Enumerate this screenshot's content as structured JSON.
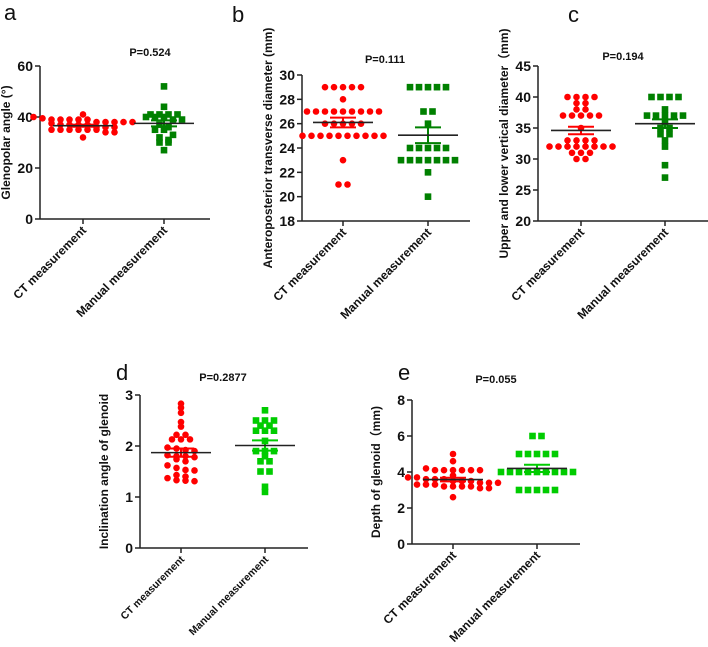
{
  "chart_data": [
    {
      "type": "scatter",
      "panel": "a",
      "title": "P=0.524",
      "ylabel": "Glenopolar angle (°)",
      "ylim": [
        0,
        60
      ],
      "yticks": [
        0,
        20,
        40,
        60
      ],
      "categories": [
        "CT measurement",
        "Manual measurement"
      ],
      "series": [
        {
          "name": "CT measurement",
          "color": "#ff0000",
          "marker": "circle",
          "mean": 36.6,
          "sem": 0.4,
          "values": [
            41,
            40,
            39.5,
            39,
            39,
            39,
            39,
            39,
            38,
            38,
            38,
            38,
            38,
            37.5,
            37,
            37,
            37,
            37,
            36,
            36,
            36,
            35,
            35,
            35,
            35,
            35,
            35,
            34,
            34,
            32
          ]
        },
        {
          "name": "Manual measurement",
          "color": "#008000",
          "marker": "square",
          "mean": 37.5,
          "sem": 1.2,
          "values": [
            52,
            44,
            41,
            41,
            41,
            41,
            40,
            40,
            40,
            39,
            39,
            37,
            36,
            35,
            35,
            33,
            32,
            31,
            30,
            30,
            27
          ]
        }
      ]
    },
    {
      "type": "scatter",
      "panel": "b",
      "title": "P=0.111",
      "ylabel": "Anteroposterior transverse diameter (mm)",
      "ylim": [
        18,
        30
      ],
      "yticks": [
        18,
        20,
        22,
        24,
        26,
        28,
        30
      ],
      "categories": [
        "CT measurement",
        "Manual measurement"
      ],
      "series": [
        {
          "name": "CT measurement",
          "color": "#ff0000",
          "marker": "circle",
          "mean": 26.1,
          "sem": 0.4,
          "values": [
            29,
            29,
            29,
            29,
            29,
            28,
            27,
            27,
            27,
            27,
            27,
            27,
            27,
            27,
            27,
            26,
            26,
            26,
            26,
            26,
            25,
            25,
            25,
            25,
            25,
            25,
            25,
            25,
            25,
            25,
            23,
            21,
            21
          ]
        },
        {
          "name": "Manual measurement",
          "color": "#008000",
          "marker": "square",
          "mean": 25.05,
          "sem": 0.65,
          "values": [
            29,
            29,
            29,
            29,
            29,
            27,
            27,
            26,
            24,
            24,
            24,
            24,
            24,
            23,
            23,
            23,
            23,
            23,
            23,
            23,
            22,
            20
          ]
        }
      ]
    },
    {
      "type": "scatter",
      "panel": "c",
      "title": "P=0.194",
      "ylabel": "Upper and lower vertical diameter（mm)",
      "ylim": [
        20,
        45
      ],
      "yticks": [
        20,
        25,
        30,
        35,
        40,
        45
      ],
      "categories": [
        "CT measurement",
        "Manual measurement"
      ],
      "series": [
        {
          "name": "CT measurement",
          "color": "#ff0000",
          "marker": "circle",
          "mean": 34.6,
          "sem": 0.6,
          "values": [
            40,
            40,
            40,
            40,
            39,
            39,
            38,
            38,
            37,
            37,
            37,
            37,
            37,
            35,
            33,
            33,
            33,
            33,
            32,
            32,
            32,
            32,
            32,
            32,
            32,
            32,
            31,
            31,
            31,
            30,
            30
          ]
        },
        {
          "name": "Manual measurement",
          "color": "#008000",
          "marker": "square",
          "mean": 35.7,
          "sem": 0.7,
          "values": [
            40,
            40,
            40,
            40,
            38,
            37,
            37,
            37,
            37,
            37,
            36,
            35,
            35,
            34,
            34,
            33,
            32,
            29,
            27
          ]
        }
      ]
    },
    {
      "type": "scatter",
      "panel": "d",
      "title": "P=0.2877",
      "ylabel": "Inclination angle of glenoid",
      "ylim": [
        0,
        3
      ],
      "yticks": [
        0,
        1,
        2,
        3
      ],
      "categories": [
        "CT measurement",
        "Manual measurement"
      ],
      "series": [
        {
          "name": "CT measurement",
          "color": "#ff0000",
          "marker": "circle",
          "mean": 1.87,
          "sem": 0.08,
          "values": [
            2.83,
            2.75,
            2.65,
            2.47,
            2.38,
            2.22,
            2.22,
            2.13,
            2.13,
            2.13,
            1.97,
            1.95,
            1.92,
            1.9,
            1.82,
            1.8,
            1.8,
            1.78,
            1.74,
            1.7,
            1.62,
            1.57,
            1.53,
            1.52,
            1.43,
            1.4,
            1.37,
            1.33,
            1.32,
            1.31
          ]
        },
        {
          "name": "Manual measurement",
          "color": "#00cc00",
          "marker": "square",
          "mean": 2.01,
          "sem": 0.1,
          "values": [
            2.7,
            2.5,
            2.5,
            2.5,
            2.4,
            2.4,
            2.3,
            2.3,
            2.3,
            2.1,
            1.9,
            1.9,
            1.9,
            1.8,
            1.7,
            1.7,
            1.5,
            1.5,
            1.2,
            1.1
          ]
        }
      ]
    },
    {
      "type": "scatter",
      "panel": "e",
      "title": "P=0.055",
      "ylabel": "Depth of glenoid（mm)",
      "ylim": [
        0,
        8
      ],
      "yticks": [
        0,
        2,
        4,
        6,
        8
      ],
      "categories": [
        "CT measurement",
        "Manual measurement"
      ],
      "series": [
        {
          "name": "CT measurement",
          "color": "#ff0000",
          "marker": "circle",
          "mean": 3.58,
          "sem": 0.1,
          "values": [
            5.0,
            4.6,
            4.2,
            4.1,
            4.1,
            4.1,
            4.1,
            4.1,
            4.1,
            3.8,
            3.7,
            3.7,
            3.6,
            3.6,
            3.6,
            3.5,
            3.5,
            3.5,
            3.4,
            3.4,
            3.4,
            3.3,
            3.3,
            3.3,
            3.2,
            3.2,
            3.2,
            3.2,
            3.1,
            3.1,
            2.6
          ]
        },
        {
          "name": "Manual measurement",
          "color": "#00cc00",
          "marker": "square",
          "mean": 4.2,
          "sem": 0.2,
          "values": [
            6,
            6,
            5,
            5,
            5,
            5,
            5,
            4,
            4,
            4,
            4,
            4,
            4,
            4,
            4,
            4,
            3,
            3,
            3,
            3,
            3
          ]
        }
      ]
    }
  ]
}
